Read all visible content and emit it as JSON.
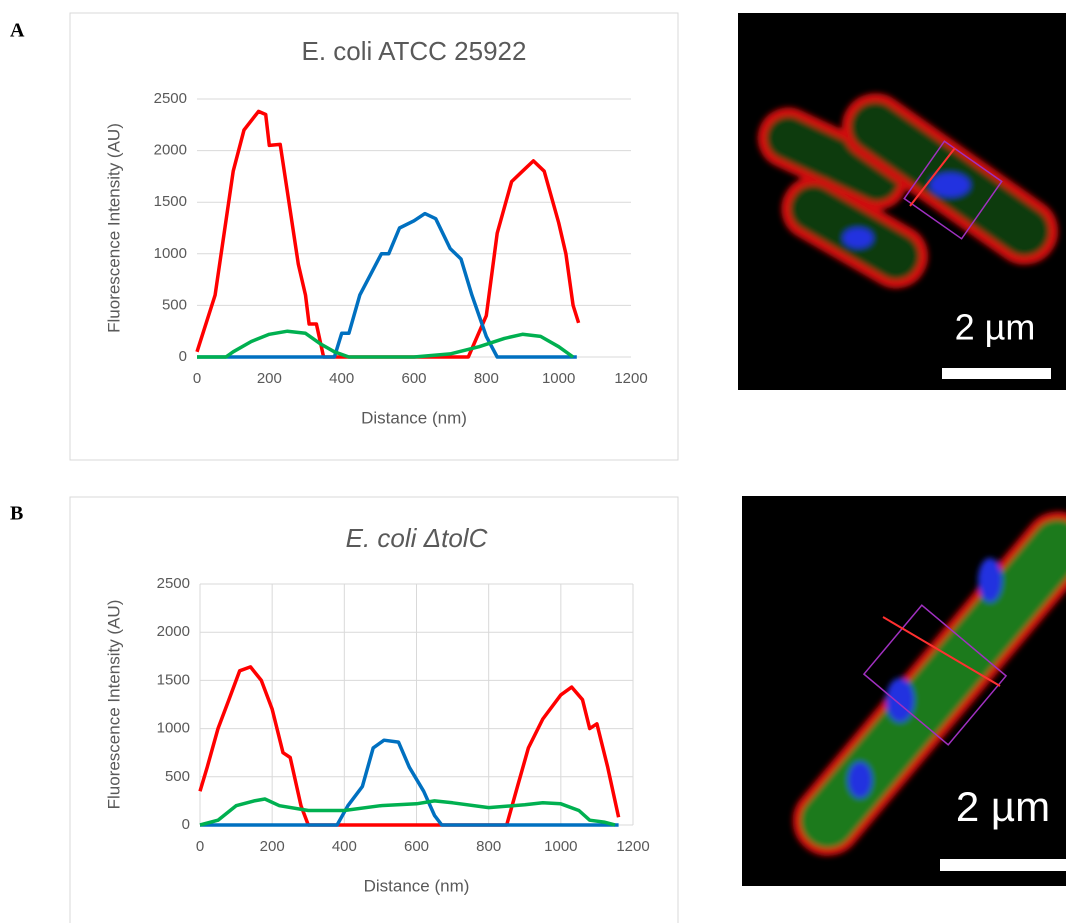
{
  "chart_data": [
    {
      "type": "line",
      "panel": "A",
      "title": "E. coli ATCC 25922",
      "title_italic": false,
      "x_label": "Distance (nm)",
      "y_label": "Fluorescence Intensity (AU)",
      "xlim": [
        0,
        1200
      ],
      "ylim": [
        0,
        2500
      ],
      "xticks": [
        0,
        200,
        400,
        600,
        800,
        1000,
        1200
      ],
      "yticks": [
        0,
        500,
        1000,
        1500,
        2000,
        2500
      ],
      "grid": "y",
      "scale_label": "2 µm",
      "series": [
        {
          "color": "#ff0000",
          "x": [
            0,
            50,
            100,
            130,
            170,
            190,
            200,
            230,
            250,
            280,
            300,
            310,
            330,
            350,
            750,
            800,
            830,
            870,
            900,
            930,
            960,
            1000,
            1020,
            1040,
            1055
          ],
          "values": [
            50,
            600,
            1800,
            2200,
            2380,
            2350,
            2050,
            2060,
            1600,
            900,
            600,
            320,
            320,
            0,
            0,
            400,
            1200,
            1700,
            1800,
            1900,
            1800,
            1300,
            1000,
            500,
            330
          ]
        },
        {
          "color": "#0070c0",
          "x": [
            0,
            380,
            400,
            420,
            450,
            480,
            510,
            530,
            560,
            600,
            630,
            660,
            700,
            730,
            760,
            800,
            830,
            1050
          ],
          "values": [
            0,
            0,
            230,
            230,
            600,
            800,
            1000,
            1000,
            1250,
            1320,
            1390,
            1340,
            1050,
            950,
            600,
            200,
            0,
            0
          ]
        },
        {
          "color": "#00b050",
          "x": [
            0,
            80,
            100,
            150,
            200,
            250,
            300,
            340,
            380,
            420,
            600,
            700,
            780,
            850,
            900,
            950,
            1000,
            1040
          ],
          "values": [
            0,
            0,
            50,
            150,
            220,
            250,
            230,
            130,
            50,
            0,
            0,
            30,
            100,
            180,
            220,
            200,
            100,
            0
          ]
        }
      ]
    },
    {
      "type": "line",
      "panel": "B",
      "title": "E. coli ΔtolC",
      "title_italic": true,
      "x_label": "Distance (nm)",
      "y_label": "Fluorescence Intensity (AU)",
      "xlim": [
        0,
        1200
      ],
      "ylim": [
        0,
        2500
      ],
      "xticks": [
        0,
        200,
        400,
        600,
        800,
        1000,
        1200
      ],
      "yticks": [
        0,
        500,
        1000,
        1500,
        2000,
        2500
      ],
      "grid": "both",
      "scale_label": "2 µm",
      "series": [
        {
          "color": "#ff0000",
          "x": [
            0,
            20,
            50,
            80,
            110,
            140,
            170,
            200,
            230,
            250,
            280,
            300,
            850,
            880,
            910,
            950,
            1000,
            1030,
            1060,
            1080,
            1100,
            1130,
            1160
          ],
          "values": [
            350,
            600,
            1000,
            1300,
            1600,
            1640,
            1500,
            1200,
            750,
            700,
            200,
            0,
            0,
            400,
            800,
            1100,
            1350,
            1430,
            1300,
            1000,
            1050,
            600,
            80
          ]
        },
        {
          "color": "#0070c0",
          "x": [
            0,
            380,
            410,
            450,
            480,
            510,
            550,
            580,
            620,
            650,
            670,
            1160
          ],
          "values": [
            0,
            0,
            200,
            400,
            800,
            880,
            860,
            600,
            350,
            100,
            0,
            0
          ]
        },
        {
          "color": "#00b050",
          "x": [
            0,
            50,
            100,
            150,
            180,
            220,
            300,
            400,
            500,
            600,
            650,
            700,
            800,
            900,
            950,
            1000,
            1050,
            1080,
            1120,
            1150
          ],
          "values": [
            0,
            50,
            200,
            250,
            270,
            200,
            150,
            150,
            200,
            220,
            250,
            230,
            180,
            210,
            230,
            220,
            150,
            50,
            30,
            0
          ]
        }
      ]
    }
  ]
}
